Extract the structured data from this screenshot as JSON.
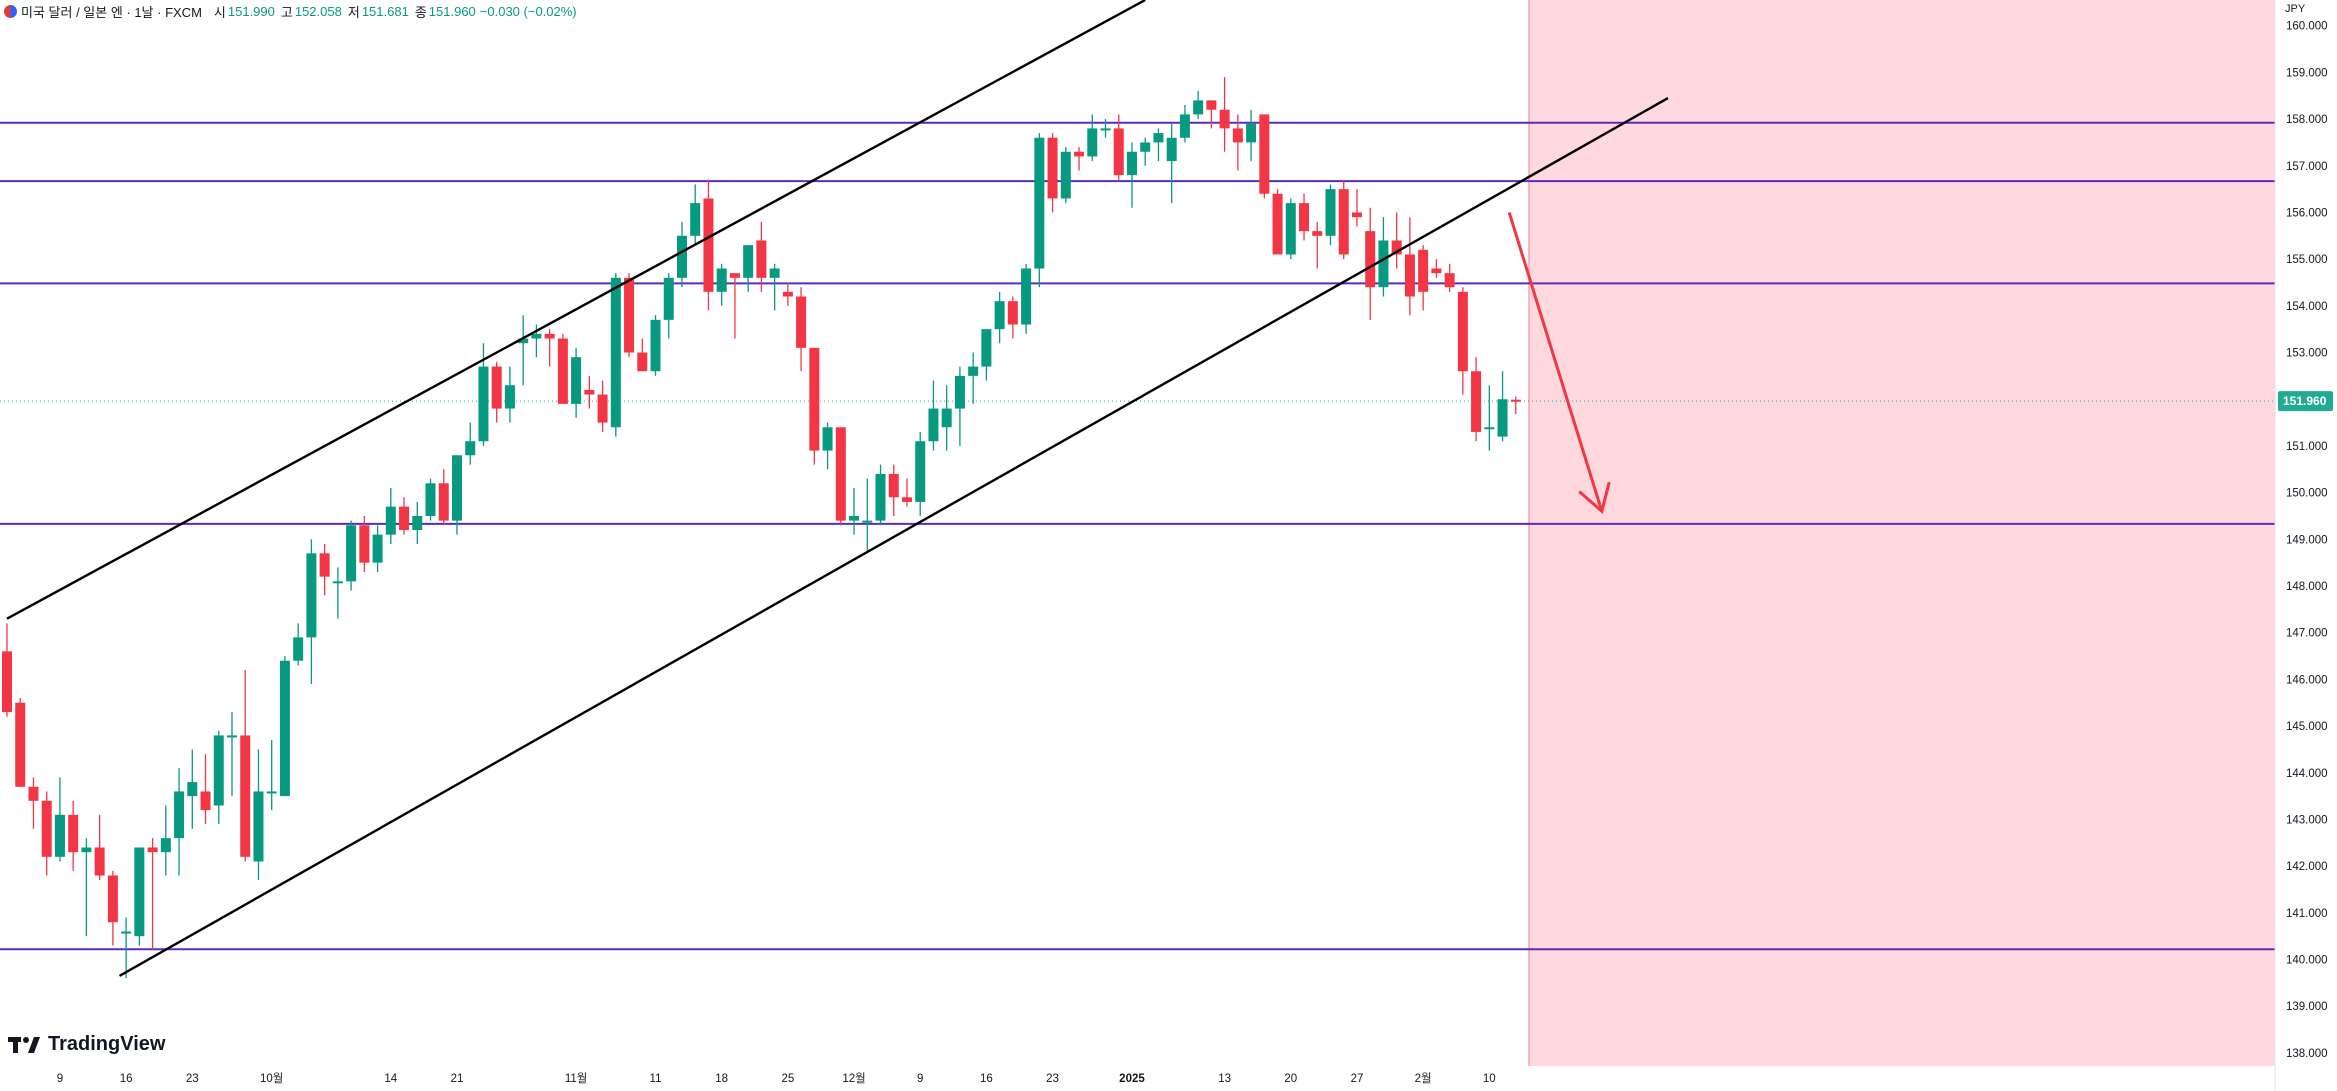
{
  "header": {
    "symbol_title": "미국 달러 / 일본 엔 · 1날 · FXCM",
    "open_label": "시",
    "open_value": "151.990",
    "high_label": "고",
    "high_value": "152.058",
    "low_label": "저",
    "low_value": "151.681",
    "close_label": "종",
    "close_value": "151.960",
    "change": "−0.030 (−0.02%)"
  },
  "price_axis": {
    "currency": "JPY",
    "last_price_label": "151.960"
  },
  "branding": {
    "logo_text": "TradingView"
  },
  "colors": {
    "up": "#089981",
    "down": "#f23645",
    "horizontal_line": "#5b2bc0",
    "trend_line": "#000000",
    "forecast_arrow": "#f23645",
    "future_zone": "#ffd9de",
    "last_price": "#22ab94"
  },
  "chart_data": {
    "type": "candlestick",
    "title": "",
    "ylim": [
      137.72,
      160.55
    ],
    "y_ticks": [
      "138.000",
      "139.000",
      "140.000",
      "141.000",
      "142.000",
      "143.000",
      "144.000",
      "145.000",
      "146.000",
      "147.000",
      "148.000",
      "149.000",
      "150.000",
      "151.000",
      "152.000",
      "153.000",
      "154.000",
      "155.000",
      "156.000",
      "157.000",
      "158.000",
      "159.000",
      "160.000"
    ],
    "x_ticks": [
      {
        "index": 4,
        "label": "9"
      },
      {
        "index": 9,
        "label": "16"
      },
      {
        "index": 14,
        "label": "23"
      },
      {
        "index": 20,
        "label": "10월"
      },
      {
        "index": 29,
        "label": "14"
      },
      {
        "index": 34,
        "label": "21"
      },
      {
        "index": 43,
        "label": "11월"
      },
      {
        "index": 49,
        "label": "11"
      },
      {
        "index": 54,
        "label": "18"
      },
      {
        "index": 59,
        "label": "25"
      },
      {
        "index": 64,
        "label": "12월"
      },
      {
        "index": 69,
        "label": "9"
      },
      {
        "index": 74,
        "label": "16"
      },
      {
        "index": 79,
        "label": "23"
      },
      {
        "index": 85,
        "label": "2025"
      },
      {
        "index": 92,
        "label": "13"
      },
      {
        "index": 97,
        "label": "20"
      },
      {
        "index": 102,
        "label": "27"
      },
      {
        "index": 107,
        "label": "2월"
      },
      {
        "index": 112,
        "label": "10"
      }
    ],
    "candles": [
      {
        "o": 146.6,
        "h": 147.2,
        "l": 145.2,
        "c": 145.3
      },
      {
        "o": 145.5,
        "h": 145.6,
        "l": 143.7,
        "c": 143.7
      },
      {
        "o": 143.7,
        "h": 143.9,
        "l": 142.8,
        "c": 143.4
      },
      {
        "o": 143.4,
        "h": 143.6,
        "l": 141.8,
        "c": 142.2
      },
      {
        "o": 142.2,
        "h": 143.9,
        "l": 142.1,
        "c": 143.1
      },
      {
        "o": 143.1,
        "h": 143.4,
        "l": 141.9,
        "c": 142.3
      },
      {
        "o": 142.3,
        "h": 142.6,
        "l": 140.5,
        "c": 142.4
      },
      {
        "o": 142.4,
        "h": 143.1,
        "l": 141.7,
        "c": 141.8
      },
      {
        "o": 141.8,
        "h": 141.9,
        "l": 140.3,
        "c": 140.8
      },
      {
        "o": 140.6,
        "h": 140.9,
        "l": 139.6,
        "c": 140.6
      },
      {
        "o": 140.5,
        "h": 142.4,
        "l": 140.3,
        "c": 142.4
      },
      {
        "o": 142.4,
        "h": 142.6,
        "l": 140.2,
        "c": 142.3
      },
      {
        "o": 142.3,
        "h": 143.3,
        "l": 141.8,
        "c": 142.6
      },
      {
        "o": 142.6,
        "h": 144.1,
        "l": 141.8,
        "c": 143.6
      },
      {
        "o": 143.5,
        "h": 144.5,
        "l": 142.8,
        "c": 143.8
      },
      {
        "o": 143.6,
        "h": 144.4,
        "l": 142.9,
        "c": 143.2
      },
      {
        "o": 143.3,
        "h": 144.9,
        "l": 142.9,
        "c": 144.8
      },
      {
        "o": 144.8,
        "h": 145.3,
        "l": 143.5,
        "c": 144.8
      },
      {
        "o": 144.8,
        "h": 146.2,
        "l": 142.1,
        "c": 142.2
      },
      {
        "o": 142.1,
        "h": 144.5,
        "l": 141.7,
        "c": 143.6
      },
      {
        "o": 143.6,
        "h": 144.7,
        "l": 143.2,
        "c": 143.6
      },
      {
        "o": 143.5,
        "h": 146.5,
        "l": 143.5,
        "c": 146.4
      },
      {
        "o": 146.4,
        "h": 147.2,
        "l": 146.3,
        "c": 146.9
      },
      {
        "o": 146.9,
        "h": 149.0,
        "l": 145.9,
        "c": 148.7
      },
      {
        "o": 148.7,
        "h": 148.9,
        "l": 147.8,
        "c": 148.2
      },
      {
        "o": 148.1,
        "h": 148.4,
        "l": 147.3,
        "c": 148.1
      },
      {
        "o": 148.1,
        "h": 149.4,
        "l": 147.9,
        "c": 149.3
      },
      {
        "o": 149.3,
        "h": 149.5,
        "l": 148.3,
        "c": 148.5
      },
      {
        "o": 148.5,
        "h": 149.3,
        "l": 148.3,
        "c": 149.1
      },
      {
        "o": 149.1,
        "h": 150.1,
        "l": 148.9,
        "c": 149.7
      },
      {
        "o": 149.7,
        "h": 149.9,
        "l": 149.1,
        "c": 149.2
      },
      {
        "o": 149.2,
        "h": 149.8,
        "l": 148.9,
        "c": 149.5
      },
      {
        "o": 149.5,
        "h": 150.3,
        "l": 149.4,
        "c": 150.2
      },
      {
        "o": 150.2,
        "h": 150.5,
        "l": 149.3,
        "c": 149.4
      },
      {
        "o": 149.4,
        "h": 150.8,
        "l": 149.1,
        "c": 150.8
      },
      {
        "o": 150.8,
        "h": 151.5,
        "l": 150.6,
        "c": 151.1
      },
      {
        "o": 151.1,
        "h": 153.2,
        "l": 151.0,
        "c": 152.7
      },
      {
        "o": 152.7,
        "h": 152.8,
        "l": 151.5,
        "c": 151.8
      },
      {
        "o": 151.8,
        "h": 152.7,
        "l": 151.5,
        "c": 152.3
      },
      {
        "o": 153.2,
        "h": 153.8,
        "l": 152.3,
        "c": 153.3
      },
      {
        "o": 153.3,
        "h": 153.6,
        "l": 152.9,
        "c": 153.4
      },
      {
        "o": 153.4,
        "h": 153.5,
        "l": 152.7,
        "c": 153.3
      },
      {
        "o": 153.3,
        "h": 153.4,
        "l": 152.0,
        "c": 151.9
      },
      {
        "o": 151.9,
        "h": 153.1,
        "l": 151.6,
        "c": 152.9
      },
      {
        "o": 152.2,
        "h": 152.5,
        "l": 151.8,
        "c": 152.1
      },
      {
        "o": 152.1,
        "h": 152.4,
        "l": 151.3,
        "c": 151.5
      },
      {
        "o": 151.4,
        "h": 154.7,
        "l": 151.2,
        "c": 154.6
      },
      {
        "o": 154.6,
        "h": 154.7,
        "l": 152.9,
        "c": 153.0
      },
      {
        "o": 153.0,
        "h": 153.3,
        "l": 152.6,
        "c": 152.6
      },
      {
        "o": 152.6,
        "h": 153.8,
        "l": 152.5,
        "c": 153.7
      },
      {
        "o": 153.7,
        "h": 154.7,
        "l": 153.3,
        "c": 154.6
      },
      {
        "o": 154.6,
        "h": 155.8,
        "l": 154.4,
        "c": 155.5
      },
      {
        "o": 155.5,
        "h": 156.6,
        "l": 155.3,
        "c": 156.2
      },
      {
        "o": 156.3,
        "h": 156.7,
        "l": 153.9,
        "c": 154.3
      },
      {
        "o": 154.3,
        "h": 154.9,
        "l": 154.0,
        "c": 154.8
      },
      {
        "o": 154.7,
        "h": 154.7,
        "l": 153.3,
        "c": 154.6
      },
      {
        "o": 154.6,
        "h": 155.3,
        "l": 154.3,
        "c": 155.3
      },
      {
        "o": 155.4,
        "h": 155.8,
        "l": 154.3,
        "c": 154.6
      },
      {
        "o": 154.6,
        "h": 154.9,
        "l": 153.9,
        "c": 154.8
      },
      {
        "o": 154.3,
        "h": 154.5,
        "l": 154.0,
        "c": 154.2
      },
      {
        "o": 154.2,
        "h": 154.4,
        "l": 152.6,
        "c": 153.1
      },
      {
        "o": 153.1,
        "h": 153.1,
        "l": 150.6,
        "c": 150.9
      },
      {
        "o": 150.9,
        "h": 151.5,
        "l": 150.5,
        "c": 151.4
      },
      {
        "o": 151.4,
        "h": 151.4,
        "l": 149.3,
        "c": 149.4
      },
      {
        "o": 149.4,
        "h": 150.1,
        "l": 149.1,
        "c": 149.5
      },
      {
        "o": 149.4,
        "h": 150.3,
        "l": 148.7,
        "c": 149.4
      },
      {
        "o": 149.4,
        "h": 150.6,
        "l": 149.3,
        "c": 150.4
      },
      {
        "o": 150.4,
        "h": 150.6,
        "l": 149.5,
        "c": 149.9
      },
      {
        "o": 149.9,
        "h": 150.3,
        "l": 149.7,
        "c": 149.8
      },
      {
        "o": 149.8,
        "h": 151.3,
        "l": 149.5,
        "c": 151.1
      },
      {
        "o": 151.1,
        "h": 152.4,
        "l": 150.9,
        "c": 151.8
      },
      {
        "o": 151.4,
        "h": 152.3,
        "l": 150.9,
        "c": 151.8
      },
      {
        "o": 151.8,
        "h": 152.7,
        "l": 151.0,
        "c": 152.5
      },
      {
        "o": 152.5,
        "h": 153.0,
        "l": 151.9,
        "c": 152.7
      },
      {
        "o": 152.7,
        "h": 153.5,
        "l": 152.4,
        "c": 153.5
      },
      {
        "o": 153.5,
        "h": 154.3,
        "l": 153.2,
        "c": 154.1
      },
      {
        "o": 154.1,
        "h": 154.2,
        "l": 153.3,
        "c": 153.6
      },
      {
        "o": 153.6,
        "h": 154.9,
        "l": 153.4,
        "c": 154.8
      },
      {
        "o": 154.8,
        "h": 157.7,
        "l": 154.4,
        "c": 157.6
      },
      {
        "o": 157.6,
        "h": 157.7,
        "l": 156.0,
        "c": 156.3
      },
      {
        "o": 156.3,
        "h": 157.4,
        "l": 156.2,
        "c": 157.3
      },
      {
        "o": 157.3,
        "h": 157.4,
        "l": 156.9,
        "c": 157.2
      },
      {
        "o": 157.2,
        "h": 158.1,
        "l": 157.1,
        "c": 157.8
      },
      {
        "o": 157.8,
        "h": 158.0,
        "l": 157.6,
        "c": 157.8
      },
      {
        "o": 157.8,
        "h": 158.1,
        "l": 156.7,
        "c": 156.8
      },
      {
        "o": 156.8,
        "h": 157.5,
        "l": 156.1,
        "c": 157.3
      },
      {
        "o": 157.3,
        "h": 157.6,
        "l": 157.0,
        "c": 157.5
      },
      {
        "o": 157.5,
        "h": 157.8,
        "l": 157.1,
        "c": 157.7
      },
      {
        "o": 157.1,
        "h": 157.9,
        "l": 156.2,
        "c": 157.6
      },
      {
        "o": 157.6,
        "h": 158.3,
        "l": 157.5,
        "c": 158.1
      },
      {
        "o": 158.1,
        "h": 158.6,
        "l": 158.0,
        "c": 158.4
      },
      {
        "o": 158.4,
        "h": 158.4,
        "l": 157.8,
        "c": 158.2
      },
      {
        "o": 158.2,
        "h": 158.9,
        "l": 157.3,
        "c": 157.8
      },
      {
        "o": 157.8,
        "h": 158.1,
        "l": 156.9,
        "c": 157.5
      },
      {
        "o": 157.5,
        "h": 158.2,
        "l": 157.1,
        "c": 157.9
      },
      {
        "o": 158.1,
        "h": 158.1,
        "l": 156.3,
        "c": 156.4
      },
      {
        "o": 156.4,
        "h": 156.5,
        "l": 155.1,
        "c": 155.1
      },
      {
        "o": 155.1,
        "h": 156.3,
        "l": 155.0,
        "c": 156.2
      },
      {
        "o": 156.2,
        "h": 156.4,
        "l": 155.4,
        "c": 155.6
      },
      {
        "o": 155.6,
        "h": 155.8,
        "l": 154.8,
        "c": 155.5
      },
      {
        "o": 155.5,
        "h": 156.6,
        "l": 155.3,
        "c": 156.5
      },
      {
        "o": 156.5,
        "h": 156.7,
        "l": 155.0,
        "c": 155.1
      },
      {
        "o": 156.0,
        "h": 156.5,
        "l": 155.7,
        "c": 155.9
      },
      {
        "o": 155.6,
        "h": 156.1,
        "l": 153.7,
        "c": 154.4
      },
      {
        "o": 154.4,
        "h": 155.9,
        "l": 154.2,
        "c": 155.4
      },
      {
        "o": 155.4,
        "h": 156.0,
        "l": 154.8,
        "c": 155.1
      },
      {
        "o": 155.1,
        "h": 155.9,
        "l": 153.8,
        "c": 154.2
      },
      {
        "o": 155.2,
        "h": 155.3,
        "l": 153.9,
        "c": 154.3
      },
      {
        "o": 154.8,
        "h": 155.0,
        "l": 154.6,
        "c": 154.7
      },
      {
        "o": 154.7,
        "h": 154.9,
        "l": 154.3,
        "c": 154.4
      },
      {
        "o": 154.3,
        "h": 154.4,
        "l": 152.1,
        "c": 152.6
      },
      {
        "o": 152.6,
        "h": 152.9,
        "l": 151.1,
        "c": 151.3
      },
      {
        "o": 151.4,
        "h": 152.3,
        "l": 150.9,
        "c": 151.4
      },
      {
        "o": 151.2,
        "h": 152.6,
        "l": 151.1,
        "c": 152.0
      },
      {
        "o": 151.99,
        "h": 152.058,
        "l": 151.681,
        "c": 151.96
      }
    ],
    "horizontal_lines": [
      157.92,
      156.67,
      154.48,
      149.33,
      140.22
    ],
    "trend_lines": [
      {
        "from": {
          "index": 0,
          "price": 147.3
        },
        "to": {
          "index": 86,
          "price": 160.55
        }
      },
      {
        "from": {
          "index": 8.5,
          "price": 139.65
        },
        "to": {
          "index": 125.5,
          "price": 158.45
        }
      }
    ],
    "forecast_arrow": {
      "from": {
        "index": 113.5,
        "price": 156.0
      },
      "to": {
        "index": 120.5,
        "price": 149.6
      }
    },
    "future_zone_start_index": 115
  }
}
